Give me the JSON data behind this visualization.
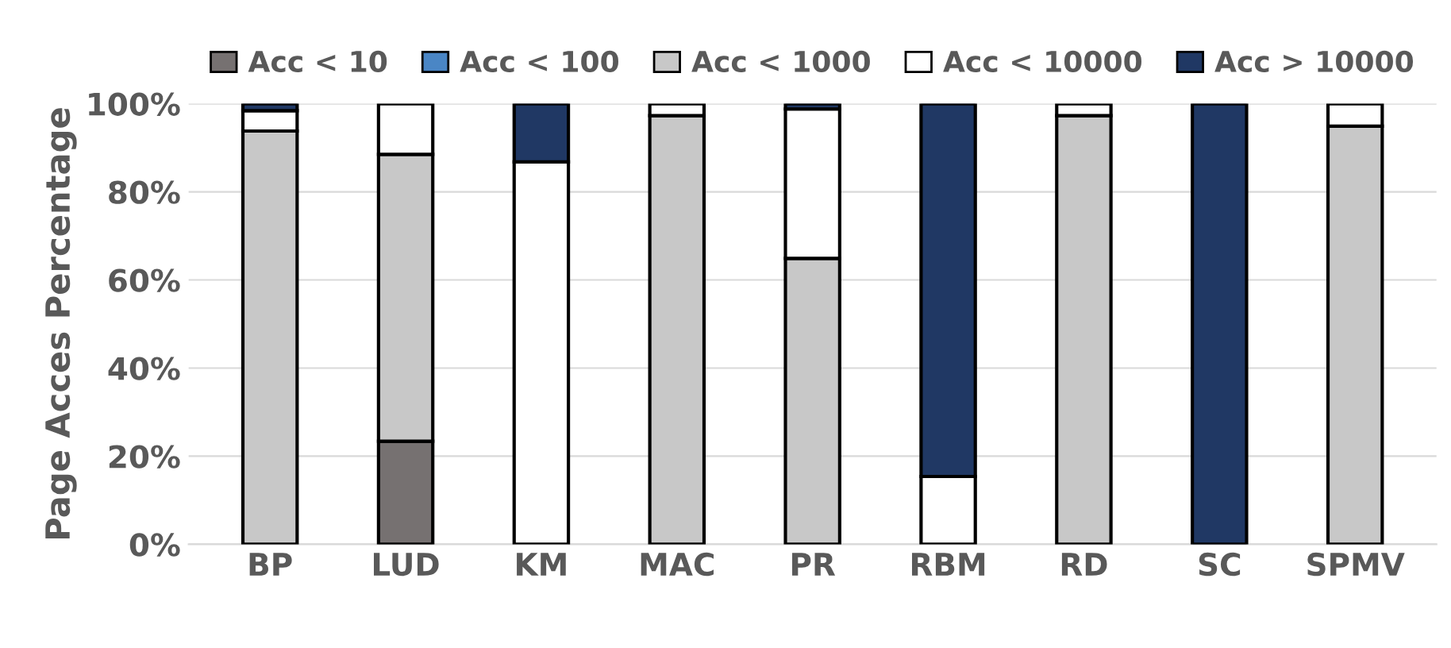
{
  "chart_data": {
    "type": "bar",
    "stacked": true,
    "ylabel": "Page Acces Percentage",
    "categories": [
      "BP",
      "LUD",
      "KM",
      "MAC",
      "PR",
      "RBM",
      "RD",
      "SC",
      "SPMV"
    ],
    "series": [
      {
        "name": "Acc < 10",
        "color": "#767171",
        "values": [
          0,
          23.4,
          0,
          0,
          0,
          0,
          0,
          0,
          0
        ]
      },
      {
        "name": "Acc < 100",
        "color": "#4a86c5",
        "values": [
          0,
          0,
          0,
          0,
          0,
          0,
          0,
          0,
          0
        ]
      },
      {
        "name": "Acc < 1000",
        "color": "#c8c8c8",
        "values": [
          93.8,
          65.1,
          0,
          97.3,
          64.9,
          0,
          97.3,
          0,
          94.9
        ]
      },
      {
        "name": "Acc < 10000",
        "color": "#ffffff",
        "values": [
          4.6,
          11.5,
          86.8,
          2.7,
          33.9,
          15.4,
          2.7,
          null,
          5.1
        ]
      },
      {
        "name": "Acc > 10000",
        "color": "#203864",
        "values": [
          1.6,
          0,
          13.2,
          0,
          1.2,
          84.6,
          0,
          100,
          0
        ]
      }
    ],
    "ylim": [
      0,
      100
    ],
    "yticks": [
      {
        "value": 0,
        "label": "0%"
      },
      {
        "value": 20,
        "label": "20%"
      },
      {
        "value": 40,
        "label": "40%"
      },
      {
        "value": 60,
        "label": "60%"
      },
      {
        "value": 80,
        "label": "80%"
      },
      {
        "value": 100,
        "label": "100%"
      }
    ],
    "grid": "y",
    "legend": "top"
  }
}
